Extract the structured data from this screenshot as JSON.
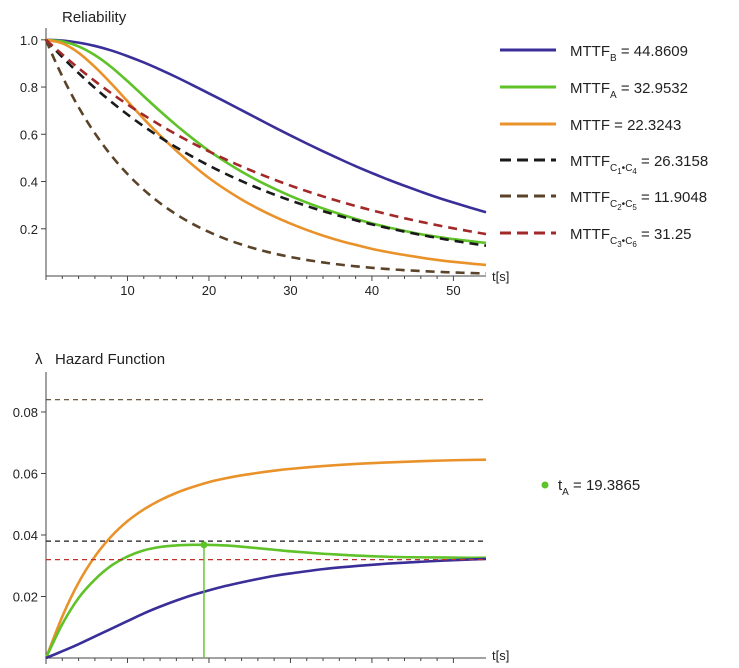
{
  "chart_data": [
    {
      "type": "line",
      "title": "Reliability",
      "xlabel": "t[s]",
      "ylabel": "",
      "xlim": [
        0,
        54
      ],
      "ylim": [
        0,
        1.05
      ],
      "xticks": [
        10,
        20,
        30,
        40,
        50
      ],
      "yticks": [
        0.2,
        0.4,
        0.6,
        0.8,
        1.0
      ],
      "xtick_labels": [
        "10",
        "20",
        "30",
        "40",
        "50"
      ],
      "ytick_labels": [
        "0.2",
        "0.4",
        "0.6",
        "0.8",
        "1.0"
      ],
      "legend_position": "right",
      "series": [
        {
          "name": "MTTF_B",
          "legend_main": "MTTF",
          "legend_sub": "B",
          "legend_sub2": "",
          "legend_value": "= 44.8609",
          "color": "#3a2e98",
          "dash": "solid",
          "x": [
            0,
            2,
            4,
            6,
            8,
            10,
            12,
            14,
            16,
            18,
            20,
            22,
            24,
            26,
            28,
            30,
            32,
            34,
            36,
            38,
            40,
            42,
            44,
            46,
            48,
            50,
            52,
            54
          ],
          "values": [
            1.0,
            0.997,
            0.988,
            0.974,
            0.955,
            0.931,
            0.904,
            0.874,
            0.842,
            0.808,
            0.773,
            0.738,
            0.702,
            0.666,
            0.63,
            0.595,
            0.561,
            0.528,
            0.496,
            0.465,
            0.436,
            0.408,
            0.382,
            0.357,
            0.333,
            0.311,
            0.29,
            0.27
          ]
        },
        {
          "name": "MTTF_A",
          "legend_main": "MTTF",
          "legend_sub": "A",
          "legend_sub2": "",
          "legend_value": "= 32.9532",
          "color": "#5ec228",
          "dash": "solid",
          "x": [
            0,
            2,
            4,
            6,
            8,
            10,
            12,
            14,
            16,
            18,
            20,
            22,
            24,
            26,
            28,
            30,
            32,
            34,
            36,
            38,
            40,
            42,
            44,
            46,
            48,
            50,
            52,
            54
          ],
          "values": [
            1.0,
            0.993,
            0.972,
            0.935,
            0.885,
            0.825,
            0.761,
            0.698,
            0.638,
            0.582,
            0.53,
            0.484,
            0.442,
            0.404,
            0.37,
            0.339,
            0.311,
            0.286,
            0.263,
            0.242,
            0.223,
            0.206,
            0.191,
            0.177,
            0.166,
            0.156,
            0.148,
            0.14
          ]
        },
        {
          "name": "MTTF",
          "legend_main": "MTTF",
          "legend_sub": "",
          "legend_sub2": "",
          "legend_value": "= 22.3243",
          "color": "#e9922a",
          "dash": "solid",
          "x": [
            0,
            2,
            4,
            6,
            8,
            10,
            12,
            14,
            16,
            18,
            20,
            22,
            24,
            26,
            28,
            30,
            32,
            34,
            36,
            38,
            40,
            42,
            44,
            46,
            48,
            50,
            52,
            54
          ],
          "values": [
            1.0,
            0.985,
            0.945,
            0.885,
            0.815,
            0.74,
            0.665,
            0.595,
            0.53,
            0.47,
            0.415,
            0.367,
            0.324,
            0.286,
            0.252,
            0.222,
            0.195,
            0.171,
            0.15,
            0.132,
            0.115,
            0.101,
            0.089,
            0.078,
            0.068,
            0.06,
            0.053,
            0.047
          ]
        },
        {
          "name": "MTTF_C1C4",
          "legend_main": "MTTF",
          "legend_sub": "C",
          "legend_sub2": "1",
          "legend_sub3": "C",
          "legend_sub4": "4",
          "legend_value": "= 26.3158",
          "color": "#1a1a1a",
          "dash": "dashed",
          "x": [
            0,
            54
          ],
          "rate": 0.038,
          "values": [
            1.0,
            0.128
          ]
        },
        {
          "name": "MTTF_C2C5",
          "legend_main": "MTTF",
          "legend_sub": "C",
          "legend_sub2": "2",
          "legend_sub3": "C",
          "legend_sub4": "5",
          "legend_value": "= 11.9048",
          "color": "#5a4329",
          "dash": "dashed",
          "x": [
            0,
            54
          ],
          "rate": 0.084,
          "values": [
            1.0,
            0.011
          ]
        },
        {
          "name": "MTTF_C3C6",
          "legend_main": "MTTF",
          "legend_sub": "C",
          "legend_sub2": "3",
          "legend_sub3": "C",
          "legend_sub4": "6",
          "legend_value": "= 31.25",
          "color": "#a32828",
          "dash": "dashed",
          "x": [
            0,
            54
          ],
          "rate": 0.032,
          "values": [
            1.0,
            0.178
          ]
        }
      ]
    },
    {
      "type": "line",
      "title": "Hazard Function",
      "title_symbol": "λ",
      "xlabel": "t[s]",
      "ylabel": "",
      "xlim": [
        0,
        54
      ],
      "ylim": [
        0,
        0.093
      ],
      "xticks": [
        10,
        20,
        30,
        40,
        50
      ],
      "yticks": [
        0.02,
        0.04,
        0.06,
        0.08
      ],
      "xtick_labels": [
        "10",
        "20",
        "30",
        "40",
        "50"
      ],
      "ytick_labels": [
        "0.02",
        "0.04",
        "0.06",
        "0.08"
      ],
      "series": [
        {
          "name": "hazard_orange",
          "color": "#e9922a",
          "dash": "solid",
          "x": [
            0,
            2,
            4,
            6,
            8,
            10,
            12,
            14,
            16,
            18,
            20,
            22,
            24,
            26,
            28,
            30,
            34,
            38,
            42,
            46,
            50,
            54
          ],
          "values": [
            0.0,
            0.0135,
            0.0245,
            0.033,
            0.0395,
            0.0445,
            0.0483,
            0.0513,
            0.0537,
            0.0556,
            0.0572,
            0.0584,
            0.0594,
            0.0602,
            0.0609,
            0.0615,
            0.0624,
            0.0631,
            0.0636,
            0.064,
            0.0643,
            0.0645
          ]
        },
        {
          "name": "hazard_green",
          "color": "#5ec228",
          "dash": "solid",
          "x": [
            0,
            2,
            4,
            6,
            8,
            10,
            12,
            14,
            16,
            18,
            19.3865,
            22,
            24,
            26,
            28,
            30,
            32,
            34,
            36,
            38,
            40,
            44,
            48,
            52,
            54
          ],
          "values": [
            0.0,
            0.011,
            0.0195,
            0.0255,
            0.03,
            0.033,
            0.035,
            0.0361,
            0.0366,
            0.0368,
            0.0368,
            0.0366,
            0.0362,
            0.0357,
            0.0352,
            0.0347,
            0.0343,
            0.0339,
            0.0336,
            0.0333,
            0.0331,
            0.0328,
            0.0327,
            0.0326,
            0.0326
          ]
        },
        {
          "name": "hazard_blue",
          "color": "#3a2e98",
          "dash": "solid",
          "x": [
            0,
            2,
            4,
            6,
            8,
            10,
            12,
            14,
            16,
            18,
            20,
            22,
            24,
            26,
            28,
            30,
            34,
            38,
            42,
            46,
            50,
            54
          ],
          "values": [
            0.0,
            0.0022,
            0.0045,
            0.007,
            0.0095,
            0.012,
            0.0145,
            0.0167,
            0.0187,
            0.0205,
            0.022,
            0.0234,
            0.0246,
            0.0257,
            0.0267,
            0.0275,
            0.0289,
            0.0299,
            0.0307,
            0.0313,
            0.0318,
            0.0322
          ]
        },
        {
          "name": "const_C2C5",
          "color": "#5a4329",
          "dash": "thin-dashed",
          "x": [
            0,
            54
          ],
          "values": [
            0.084,
            0.084
          ]
        },
        {
          "name": "const_C1C4",
          "color": "#1a1a1a",
          "dash": "thin-dashed",
          "x": [
            0,
            54
          ],
          "values": [
            0.038,
            0.038
          ]
        },
        {
          "name": "const_C3C6",
          "color": "#c0302e",
          "dash": "thin-dashed",
          "x": [
            0,
            54
          ],
          "values": [
            0.032,
            0.032
          ]
        }
      ],
      "marker": {
        "x": 19.3865,
        "y": 0.0368,
        "color": "#5ec228",
        "label_main": "t",
        "label_sub": "A",
        "label_value": "= 19.3865"
      }
    }
  ]
}
